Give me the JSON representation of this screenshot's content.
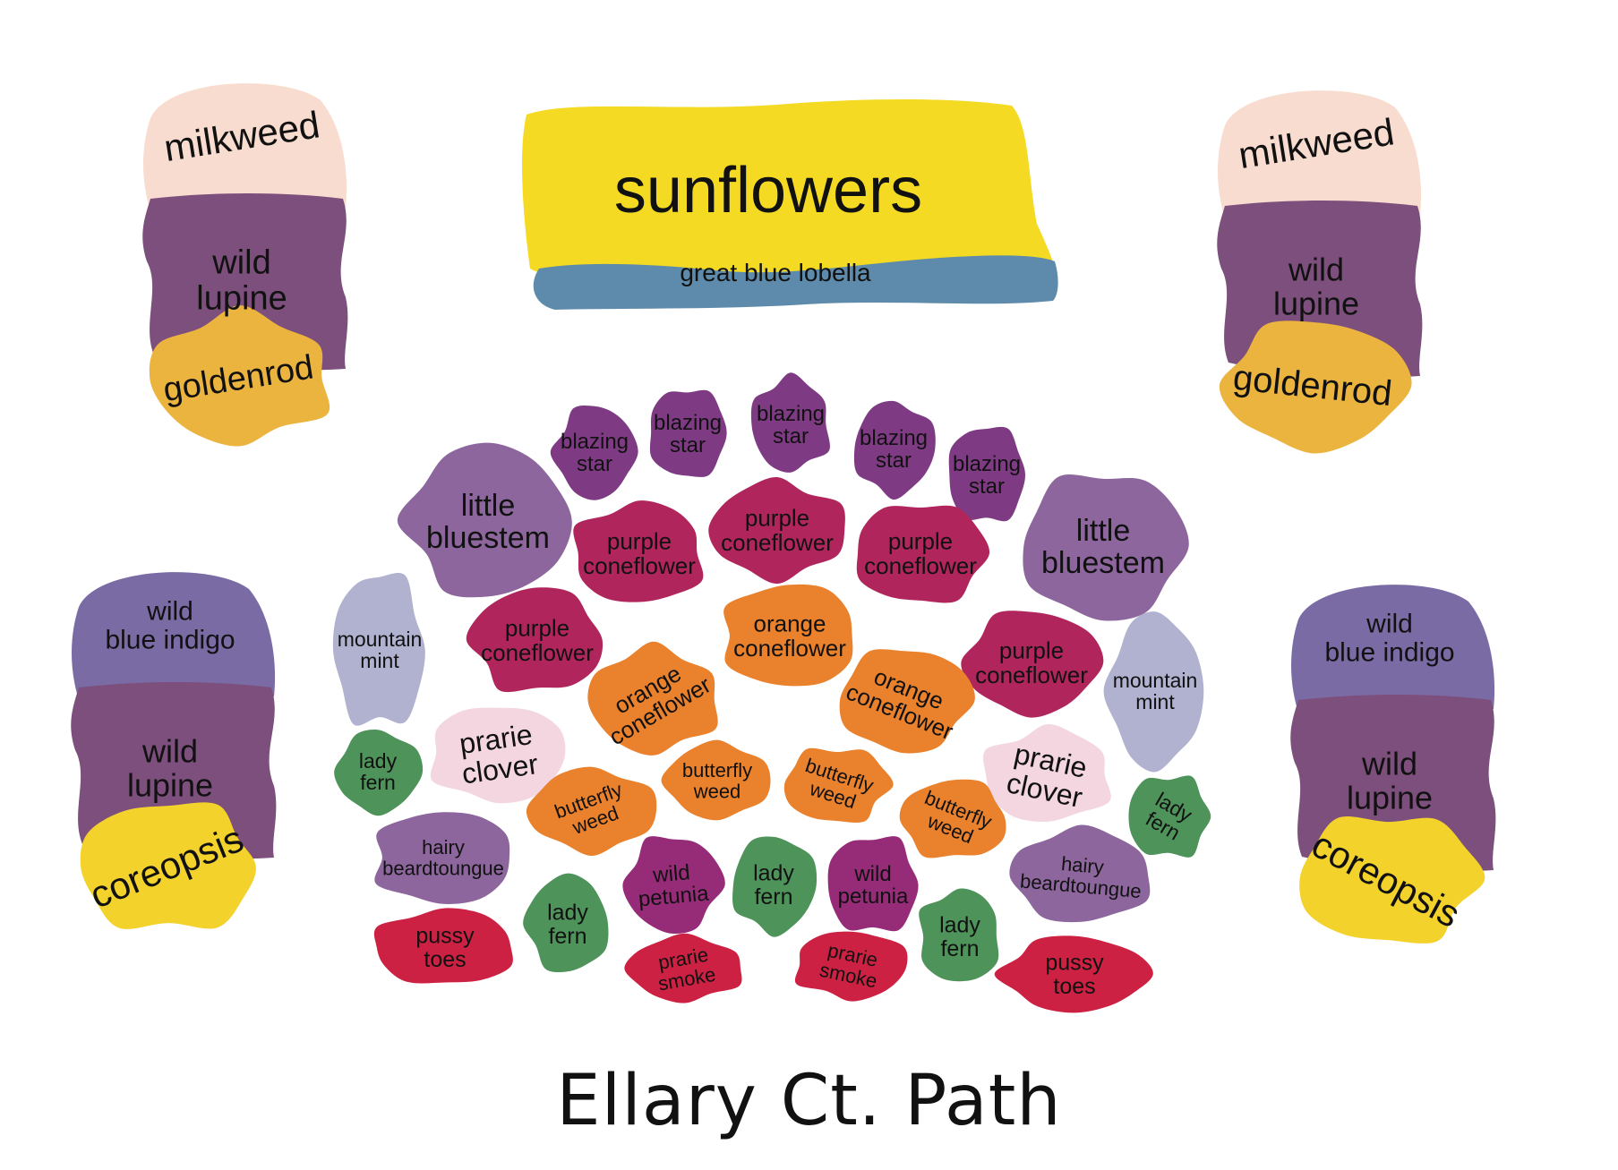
{
  "title": "Ellary Ct. Path",
  "colors": {
    "sunflowers": "#F4DA22",
    "lobelia": "#5E8BAB",
    "milkweed": "#F8DCCF",
    "wild_lupine": "#7C4F7C",
    "goldenrod": "#EBB43F",
    "wild_blue_indigo": "#7A6BA4",
    "coreopsis": "#F3D22B",
    "blazing_star": "#7E3B83",
    "little_bluestem": "#8C669C",
    "purple_coneflower": "#B0265C",
    "orange_coneflower": "#E9812D",
    "mountain_mint": "#B0B2D0",
    "prairie_clover": "#F3D6E0",
    "lady_fern": "#4E935A",
    "butterfly_weed": "#E9812D",
    "hairy_beardtongue": "#8C669C",
    "wild_petunia": "#962B78",
    "prairie_smoke": "#CC2142",
    "pussy_toes": "#CC2142",
    "text": "#111111"
  },
  "beds": {
    "top_center": {
      "main": "sunflowers",
      "edge": "great blue lobella"
    },
    "top_left": [
      "milkweed",
      "wild lupine",
      "goldenrod"
    ],
    "top_right": [
      "milkweed",
      "wild lupine",
      "goldenrod"
    ],
    "bottom_left": [
      "wild blue indigo",
      "wild lupine",
      "coreopsis"
    ],
    "bottom_right": [
      "wild blue indigo",
      "wild lupine",
      "coreopsis"
    ]
  },
  "central_bed": {
    "blazing_star": "blazing star",
    "little_bluestem": "little bluestem",
    "purple_coneflower": "purple coneflower",
    "orange_coneflower": "orange coneflower",
    "mountain_mint": "mountain mint",
    "prairie_clover": "prarie clover",
    "lady_fern": "lady fern",
    "butterfly_weed": "butterfly weed",
    "hairy_beardtongue": "hairy beardtoungue",
    "wild_petunia": "wild petunia",
    "prairie_smoke": "prarie smoke",
    "pussy_toes": "pussy toes"
  }
}
